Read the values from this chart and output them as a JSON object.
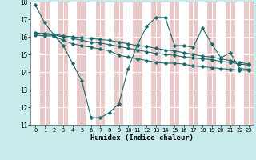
{
  "xlabel": "Humidex (Indice chaleur)",
  "bg_color": "#c8eaea",
  "grid_color_white": "#ffffff",
  "grid_color_pink": "#e8c8c8",
  "line_color": "#1a6b6b",
  "xlim": [
    -0.5,
    23.5
  ],
  "ylim": [
    11,
    18
  ],
  "yticks": [
    11,
    12,
    13,
    14,
    15,
    16,
    17,
    18
  ],
  "xtick_labels": [
    "0",
    "1",
    "2",
    "3",
    "4",
    "5",
    "6",
    "7",
    "8",
    "9",
    "10",
    "11",
    "12",
    "13",
    "14",
    "15",
    "16",
    "17",
    "18",
    "19",
    "20",
    "21",
    "22",
    "23"
  ],
  "lines": [
    [
      17.8,
      16.8,
      16.1,
      15.5,
      14.5,
      13.5,
      11.4,
      11.4,
      11.7,
      12.2,
      14.2,
      15.55,
      16.6,
      17.1,
      17.1,
      15.5,
      15.5,
      15.4,
      16.5,
      15.6,
      14.8,
      15.1,
      14.2,
      14.15
    ],
    [
      16.1,
      16.05,
      16.05,
      15.8,
      15.6,
      15.5,
      15.4,
      15.3,
      15.2,
      14.95,
      14.85,
      14.75,
      14.65,
      14.55,
      14.5,
      14.5,
      14.45,
      14.35,
      14.3,
      14.25,
      14.2,
      14.15,
      14.1,
      14.1
    ],
    [
      16.2,
      16.2,
      16.15,
      16.05,
      16.0,
      15.95,
      15.9,
      15.85,
      15.8,
      15.7,
      15.6,
      15.5,
      15.45,
      15.35,
      15.25,
      15.2,
      15.1,
      15.0,
      14.9,
      14.85,
      14.75,
      14.65,
      14.55,
      14.45
    ],
    [
      16.25,
      16.15,
      16.1,
      16.0,
      15.9,
      15.8,
      15.7,
      15.65,
      15.55,
      15.45,
      15.35,
      15.25,
      15.15,
      15.05,
      15.0,
      14.95,
      14.85,
      14.8,
      14.75,
      14.7,
      14.6,
      14.55,
      14.45,
      14.4
    ]
  ]
}
